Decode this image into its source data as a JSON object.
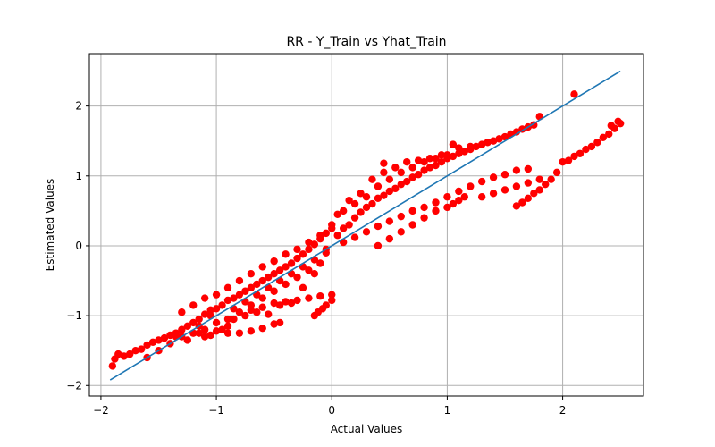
{
  "chart_data": {
    "type": "scatter",
    "title": "RR - Y_Train vs Yhat_Train",
    "xlabel": "Actual Values",
    "ylabel": "Estimated Values",
    "xlim": [
      -2.1,
      2.7
    ],
    "ylim": [
      -2.15,
      2.75
    ],
    "xticks": [
      -2,
      -1,
      0,
      1,
      2
    ],
    "yticks": [
      -2,
      -1,
      0,
      1,
      2
    ],
    "xtick_labels": [
      "−2",
      "−1",
      "0",
      "1",
      "2"
    ],
    "ytick_labels": [
      "−2",
      "−1",
      "0",
      "1",
      "2"
    ],
    "grid": true,
    "colors": {
      "points": "#ff0000",
      "line": "#1f77b4",
      "grid": "#b0b0b0"
    },
    "series": [
      {
        "kind": "scatter",
        "points": [
          [
            -1.9,
            -1.72
          ],
          [
            -1.88,
            -1.62
          ],
          [
            -1.85,
            -1.55
          ],
          [
            -1.8,
            -1.58
          ],
          [
            -1.75,
            -1.55
          ],
          [
            -1.7,
            -1.5
          ],
          [
            -1.65,
            -1.48
          ],
          [
            -1.6,
            -1.42
          ],
          [
            -1.55,
            -1.38
          ],
          [
            -1.5,
            -1.35
          ],
          [
            -1.45,
            -1.32
          ],
          [
            -1.4,
            -1.28
          ],
          [
            -1.35,
            -1.25
          ],
          [
            -1.3,
            -1.2
          ],
          [
            -1.25,
            -1.15
          ],
          [
            -1.2,
            -1.1
          ],
          [
            -1.15,
            -1.05
          ],
          [
            -1.1,
            -0.98
          ],
          [
            -1.05,
            -0.92
          ],
          [
            -1.0,
            -0.9
          ],
          [
            -0.95,
            -0.85
          ],
          [
            -0.9,
            -0.78
          ],
          [
            -0.85,
            -0.75
          ],
          [
            -0.8,
            -0.7
          ],
          [
            -0.75,
            -0.65
          ],
          [
            -0.7,
            -0.6
          ],
          [
            -0.65,
            -0.55
          ],
          [
            -0.6,
            -0.5
          ],
          [
            -0.55,
            -0.45
          ],
          [
            -0.5,
            -0.4
          ],
          [
            -0.45,
            -0.35
          ],
          [
            -0.4,
            -0.3
          ],
          [
            -0.35,
            -0.25
          ],
          [
            -0.3,
            -0.18
          ],
          [
            -0.25,
            -0.12
          ],
          [
            -0.2,
            -0.05
          ],
          [
            -0.15,
            0.02
          ],
          [
            -0.1,
            0.1
          ],
          [
            -0.05,
            0.18
          ],
          [
            0.0,
            0.25
          ],
          [
            -1.3,
            -0.95
          ],
          [
            -1.2,
            -0.85
          ],
          [
            -1.1,
            -0.75
          ],
          [
            -1.0,
            -0.7
          ],
          [
            -0.9,
            -0.6
          ],
          [
            -0.8,
            -0.5
          ],
          [
            -0.7,
            -0.4
          ],
          [
            -0.6,
            -0.3
          ],
          [
            -0.5,
            -0.22
          ],
          [
            -0.4,
            -0.12
          ],
          [
            -0.3,
            -0.05
          ],
          [
            -0.2,
            0.05
          ],
          [
            -0.1,
            0.15
          ],
          [
            0.0,
            0.3
          ],
          [
            -1.6,
            -1.6
          ],
          [
            -1.5,
            -1.5
          ],
          [
            -1.4,
            -1.4
          ],
          [
            -1.3,
            -1.3
          ],
          [
            -1.2,
            -1.25
          ],
          [
            -1.1,
            -1.2
          ],
          [
            -1.0,
            -1.1
          ],
          [
            -0.9,
            -1.05
          ],
          [
            -0.8,
            -0.95
          ],
          [
            -0.7,
            -0.85
          ],
          [
            -0.6,
            -0.75
          ],
          [
            -0.5,
            -0.65
          ],
          [
            -0.4,
            -0.55
          ],
          [
            -0.3,
            -0.45
          ],
          [
            -0.2,
            -0.35
          ],
          [
            -0.1,
            -0.25
          ],
          [
            -1.15,
            -1.25
          ],
          [
            -1.1,
            -1.3
          ],
          [
            -1.05,
            -1.28
          ],
          [
            -1.0,
            -1.22
          ],
          [
            -0.9,
            -1.25
          ],
          [
            -0.8,
            -1.25
          ],
          [
            -0.7,
            -1.22
          ],
          [
            -0.6,
            -1.18
          ],
          [
            -0.5,
            -1.12
          ],
          [
            -0.45,
            -1.1
          ],
          [
            -0.7,
            -0.92
          ],
          [
            -0.6,
            -0.88
          ],
          [
            -0.5,
            -0.82
          ],
          [
            -0.4,
            -0.8
          ],
          [
            -0.3,
            -0.78
          ],
          [
            -0.2,
            -0.75
          ],
          [
            -0.1,
            -0.72
          ],
          [
            0.0,
            -0.7
          ],
          [
            -0.15,
            -1.0
          ],
          [
            -0.12,
            -0.95
          ],
          [
            -0.08,
            -0.9
          ],
          [
            -0.05,
            -0.85
          ],
          [
            0.0,
            -0.78
          ],
          [
            0.05,
            0.15
          ],
          [
            0.1,
            0.25
          ],
          [
            0.15,
            0.3
          ],
          [
            0.2,
            0.4
          ],
          [
            0.25,
            0.48
          ],
          [
            0.3,
            0.55
          ],
          [
            0.35,
            0.6
          ],
          [
            0.4,
            0.68
          ],
          [
            0.45,
            0.72
          ],
          [
            0.5,
            0.78
          ],
          [
            0.55,
            0.82
          ],
          [
            0.6,
            0.88
          ],
          [
            0.65,
            0.92
          ],
          [
            0.7,
            0.98
          ],
          [
            0.75,
            1.02
          ],
          [
            0.8,
            1.08
          ],
          [
            0.85,
            1.12
          ],
          [
            0.9,
            1.15
          ],
          [
            0.95,
            1.2
          ],
          [
            1.0,
            1.25
          ],
          [
            1.05,
            1.28
          ],
          [
            1.1,
            1.32
          ],
          [
            1.15,
            1.35
          ],
          [
            1.2,
            1.38
          ],
          [
            1.25,
            1.42
          ],
          [
            1.3,
            1.45
          ],
          [
            1.35,
            1.48
          ],
          [
            1.4,
            1.5
          ],
          [
            1.45,
            1.53
          ],
          [
            1.5,
            1.56
          ],
          [
            1.55,
            1.6
          ],
          [
            1.6,
            1.63
          ],
          [
            1.65,
            1.67
          ],
          [
            1.7,
            1.7
          ],
          [
            1.75,
            1.73
          ],
          [
            1.8,
            1.85
          ],
          [
            0.1,
            0.5
          ],
          [
            0.2,
            0.6
          ],
          [
            0.3,
            0.7
          ],
          [
            0.4,
            0.85
          ],
          [
            0.5,
            0.95
          ],
          [
            0.6,
            1.05
          ],
          [
            0.7,
            1.12
          ],
          [
            0.8,
            1.2
          ],
          [
            0.9,
            1.25
          ],
          [
            1.0,
            1.3
          ],
          [
            1.1,
            1.4
          ],
          [
            1.2,
            1.42
          ],
          [
            0.45,
            1.05
          ],
          [
            0.55,
            1.12
          ],
          [
            0.65,
            1.2
          ],
          [
            0.75,
            1.22
          ],
          [
            0.85,
            1.25
          ],
          [
            0.95,
            1.3
          ],
          [
            1.05,
            1.45
          ],
          [
            0.1,
            0.05
          ],
          [
            0.2,
            0.12
          ],
          [
            0.3,
            0.2
          ],
          [
            0.4,
            0.28
          ],
          [
            0.5,
            0.35
          ],
          [
            0.6,
            0.42
          ],
          [
            0.7,
            0.5
          ],
          [
            0.8,
            0.55
          ],
          [
            0.9,
            0.62
          ],
          [
            1.0,
            0.7
          ],
          [
            1.1,
            0.78
          ],
          [
            1.2,
            0.85
          ],
          [
            1.3,
            0.92
          ],
          [
            1.4,
            0.98
          ],
          [
            1.5,
            1.02
          ],
          [
            1.6,
            1.08
          ],
          [
            1.7,
            1.1
          ],
          [
            0.4,
            0.0
          ],
          [
            0.5,
            0.1
          ],
          [
            0.6,
            0.2
          ],
          [
            0.7,
            0.3
          ],
          [
            0.8,
            0.4
          ],
          [
            0.9,
            0.5
          ],
          [
            1.0,
            0.55
          ],
          [
            1.05,
            0.6
          ],
          [
            1.1,
            0.65
          ],
          [
            1.15,
            0.7
          ],
          [
            1.3,
            0.7
          ],
          [
            1.4,
            0.75
          ],
          [
            1.5,
            0.8
          ],
          [
            1.6,
            0.85
          ],
          [
            1.7,
            0.9
          ],
          [
            1.8,
            0.95
          ],
          [
            1.6,
            0.57
          ],
          [
            1.65,
            0.62
          ],
          [
            1.7,
            0.68
          ],
          [
            1.75,
            0.75
          ],
          [
            1.8,
            0.8
          ],
          [
            1.85,
            0.88
          ],
          [
            1.9,
            0.95
          ],
          [
            1.95,
            1.05
          ],
          [
            2.0,
            1.2
          ],
          [
            2.05,
            1.22
          ],
          [
            2.1,
            1.28
          ],
          [
            2.15,
            1.32
          ],
          [
            2.2,
            1.38
          ],
          [
            2.25,
            1.42
          ],
          [
            2.3,
            1.48
          ],
          [
            2.35,
            1.55
          ],
          [
            2.4,
            1.6
          ],
          [
            2.45,
            1.68
          ],
          [
            2.5,
            1.75
          ],
          [
            2.48,
            1.78
          ],
          [
            2.42,
            1.72
          ],
          [
            2.1,
            2.17
          ],
          [
            -0.9,
            -1.15
          ],
          [
            -0.85,
            -1.05
          ],
          [
            -0.75,
            -1.0
          ],
          [
            -0.65,
            -0.95
          ],
          [
            -0.55,
            -0.98
          ],
          [
            -0.45,
            -0.85
          ],
          [
            -0.35,
            -0.82
          ],
          [
            -0.25,
            -0.6
          ],
          [
            -0.15,
            -0.4
          ],
          [
            -0.05,
            -0.1
          ],
          [
            0.05,
            0.45
          ],
          [
            0.15,
            0.65
          ],
          [
            0.25,
            0.75
          ],
          [
            0.35,
            0.95
          ],
          [
            0.45,
            1.18
          ],
          [
            -1.35,
            -1.3
          ],
          [
            -1.25,
            -1.35
          ],
          [
            -1.15,
            -1.15
          ],
          [
            -1.05,
            -1.0
          ],
          [
            -0.95,
            -1.2
          ],
          [
            -0.85,
            -0.9
          ],
          [
            -0.75,
            -0.8
          ],
          [
            -0.65,
            -0.7
          ],
          [
            -0.55,
            -0.6
          ],
          [
            -0.45,
            -0.5
          ],
          [
            -0.35,
            -0.4
          ],
          [
            -0.25,
            -0.3
          ],
          [
            -0.15,
            -0.2
          ],
          [
            -0.05,
            -0.05
          ]
        ]
      },
      {
        "kind": "line",
        "points": [
          [
            -1.92,
            -1.92
          ],
          [
            2.5,
            2.5
          ]
        ]
      }
    ]
  }
}
